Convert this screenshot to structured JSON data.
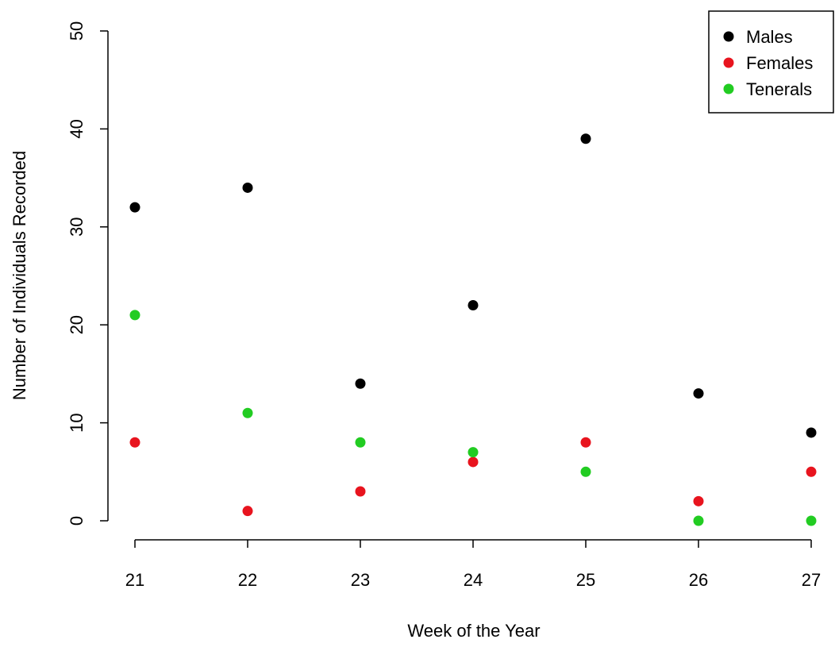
{
  "chart_data": {
    "type": "scatter",
    "title": "",
    "xlabel": "Week of the Year",
    "ylabel": "Number of Individuals Recorded",
    "x": [
      21,
      22,
      23,
      24,
      25,
      26,
      27
    ],
    "xlim": [
      21,
      27
    ],
    "ylim": [
      0,
      50
    ],
    "x_ticks": [
      21,
      22,
      23,
      24,
      25,
      26,
      27
    ],
    "y_ticks": [
      0,
      10,
      20,
      30,
      40,
      50
    ],
    "grid": false,
    "legend_position": "top-right",
    "series": [
      {
        "name": "Males",
        "color": "#000000",
        "values": [
          32,
          34,
          14,
          22,
          39,
          13,
          9
        ]
      },
      {
        "name": "Females",
        "color": "#e8141e",
        "values": [
          8,
          1,
          3,
          6,
          8,
          2,
          5
        ]
      },
      {
        "name": "Tenerals",
        "color": "#22cc22",
        "values": [
          21,
          11,
          8,
          7,
          5,
          0,
          0
        ]
      }
    ]
  }
}
